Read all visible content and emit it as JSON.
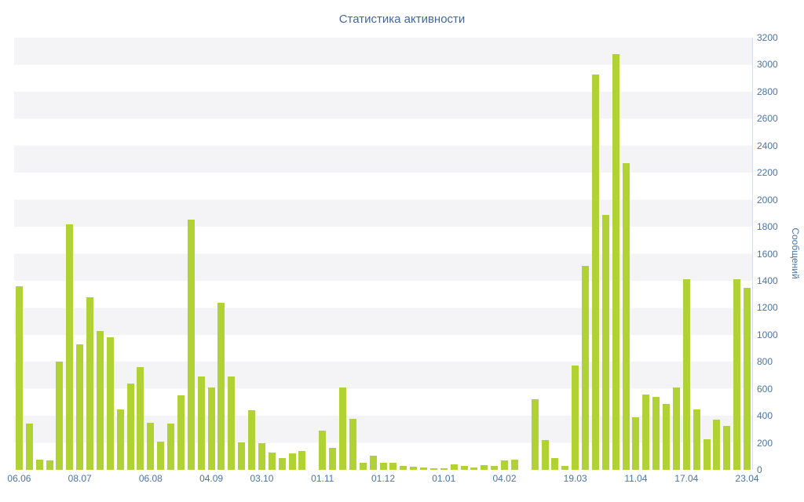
{
  "chart_data": {
    "type": "bar",
    "title": "Статистика активности",
    "ylabel": "Сообщений",
    "xlabel": "",
    "ylim": [
      0,
      3200
    ],
    "y_tick_step": 200,
    "y_ticks": [
      0,
      200,
      400,
      600,
      800,
      1000,
      1200,
      1400,
      1600,
      1800,
      2000,
      2200,
      2400,
      2600,
      2800,
      3000,
      3200
    ],
    "grid": "horizontal-striped-bands",
    "legend": "none",
    "bar_color": "#b0d235",
    "axis_text_color": "#4a74a8",
    "title_color": "#44689b",
    "values": [
      1360,
      340,
      75,
      70,
      800,
      1820,
      930,
      1280,
      1030,
      980,
      450,
      640,
      760,
      350,
      210,
      345,
      550,
      1850,
      690,
      610,
      1240,
      690,
      205,
      440,
      200,
      130,
      90,
      120,
      140,
      0,
      290,
      165,
      610,
      380,
      55,
      105,
      50,
      55,
      30,
      25,
      15,
      10,
      10,
      40,
      30,
      20,
      35,
      30,
      70,
      75,
      0,
      520,
      220,
      90,
      30,
      770,
      1510,
      2930,
      1890,
      3080,
      2270,
      390,
      555,
      540,
      490,
      610,
      1410,
      445,
      225,
      370,
      325,
      1410,
      1350
    ],
    "x_ticks": [
      {
        "index": 0,
        "label": "06.06"
      },
      {
        "index": 6,
        "label": "08.07"
      },
      {
        "index": 13,
        "label": "06.08"
      },
      {
        "index": 19,
        "label": "04.09"
      },
      {
        "index": 24,
        "label": "03.10"
      },
      {
        "index": 30,
        "label": "01.11"
      },
      {
        "index": 36,
        "label": "01.12"
      },
      {
        "index": 42,
        "label": "01.01"
      },
      {
        "index": 48,
        "label": "04.02"
      },
      {
        "index": 55,
        "label": "19.03"
      },
      {
        "index": 61,
        "label": "11.04"
      },
      {
        "index": 66,
        "label": "17.04"
      },
      {
        "index": 72,
        "label": "23.04"
      }
    ]
  }
}
